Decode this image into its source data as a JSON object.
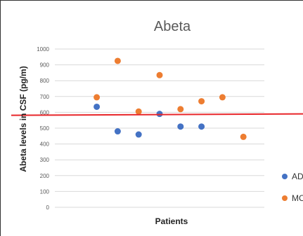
{
  "chart_data": {
    "type": "scatter",
    "title": "Abeta",
    "xlabel": "Patients",
    "ylabel": "Abeta levels in CSF (pg/m)",
    "ylim": [
      0,
      1000
    ],
    "yticks": [
      0,
      100,
      200,
      300,
      400,
      500,
      600,
      700,
      800,
      900,
      1000
    ],
    "xlim": [
      0,
      10
    ],
    "grid": true,
    "legend_position": "right",
    "threshold": {
      "y": 590,
      "color": "#e8262a"
    },
    "series": [
      {
        "name": "AD",
        "color": "#4472c4",
        "points": [
          {
            "x": 2,
            "y": 635
          },
          {
            "x": 3,
            "y": 480
          },
          {
            "x": 4,
            "y": 460
          },
          {
            "x": 5,
            "y": 590
          },
          {
            "x": 6,
            "y": 510
          },
          {
            "x": 7,
            "y": 510
          }
        ]
      },
      {
        "name": "MCI",
        "color": "#ed7d31",
        "points": [
          {
            "x": 2,
            "y": 695
          },
          {
            "x": 3,
            "y": 925
          },
          {
            "x": 4,
            "y": 605
          },
          {
            "x": 5,
            "y": 835
          },
          {
            "x": 6,
            "y": 620
          },
          {
            "x": 7,
            "y": 670
          },
          {
            "x": 8,
            "y": 695
          },
          {
            "x": 9,
            "y": 445
          }
        ]
      }
    ]
  }
}
